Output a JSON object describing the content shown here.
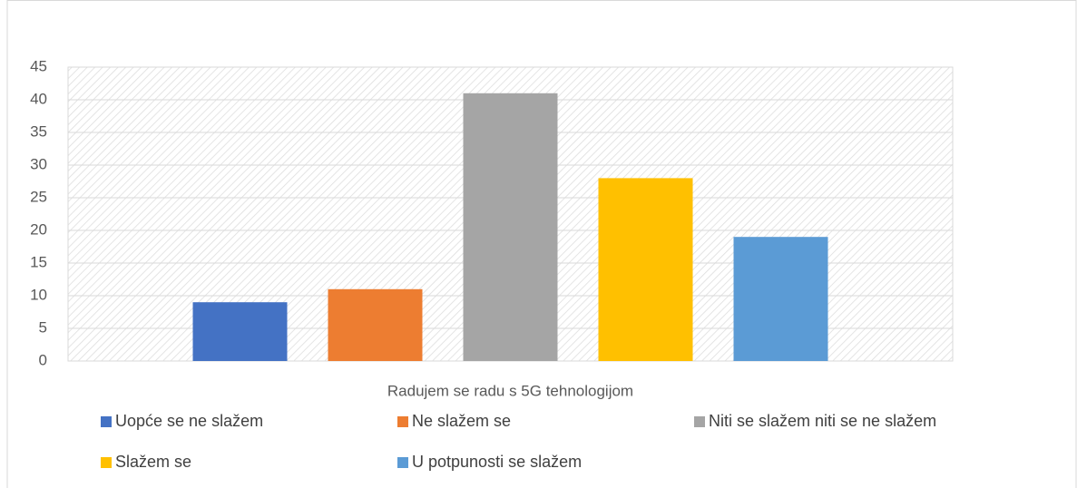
{
  "chart_data": {
    "type": "bar",
    "categories": [
      "Radujem se radu s 5G tehnologijom"
    ],
    "series": [
      {
        "name": "Uopće se ne slažem",
        "color": "#4472c4",
        "values": [
          9
        ]
      },
      {
        "name": "Ne slažem se",
        "color": "#ed7d31",
        "values": [
          11
        ]
      },
      {
        "name": "Niti se slažem niti se ne slažem",
        "color": "#a5a5a5",
        "values": [
          41
        ]
      },
      {
        "name": "Slažem se",
        "color": "#ffc000",
        "values": [
          28
        ]
      },
      {
        "name": "U potpunosti se slažem",
        "color": "#5b9bd5",
        "values": [
          19
        ]
      }
    ],
    "ylim": [
      0,
      45
    ],
    "yticks": [
      0,
      5,
      10,
      15,
      20,
      25,
      30,
      35,
      40,
      45
    ],
    "grid": true
  }
}
